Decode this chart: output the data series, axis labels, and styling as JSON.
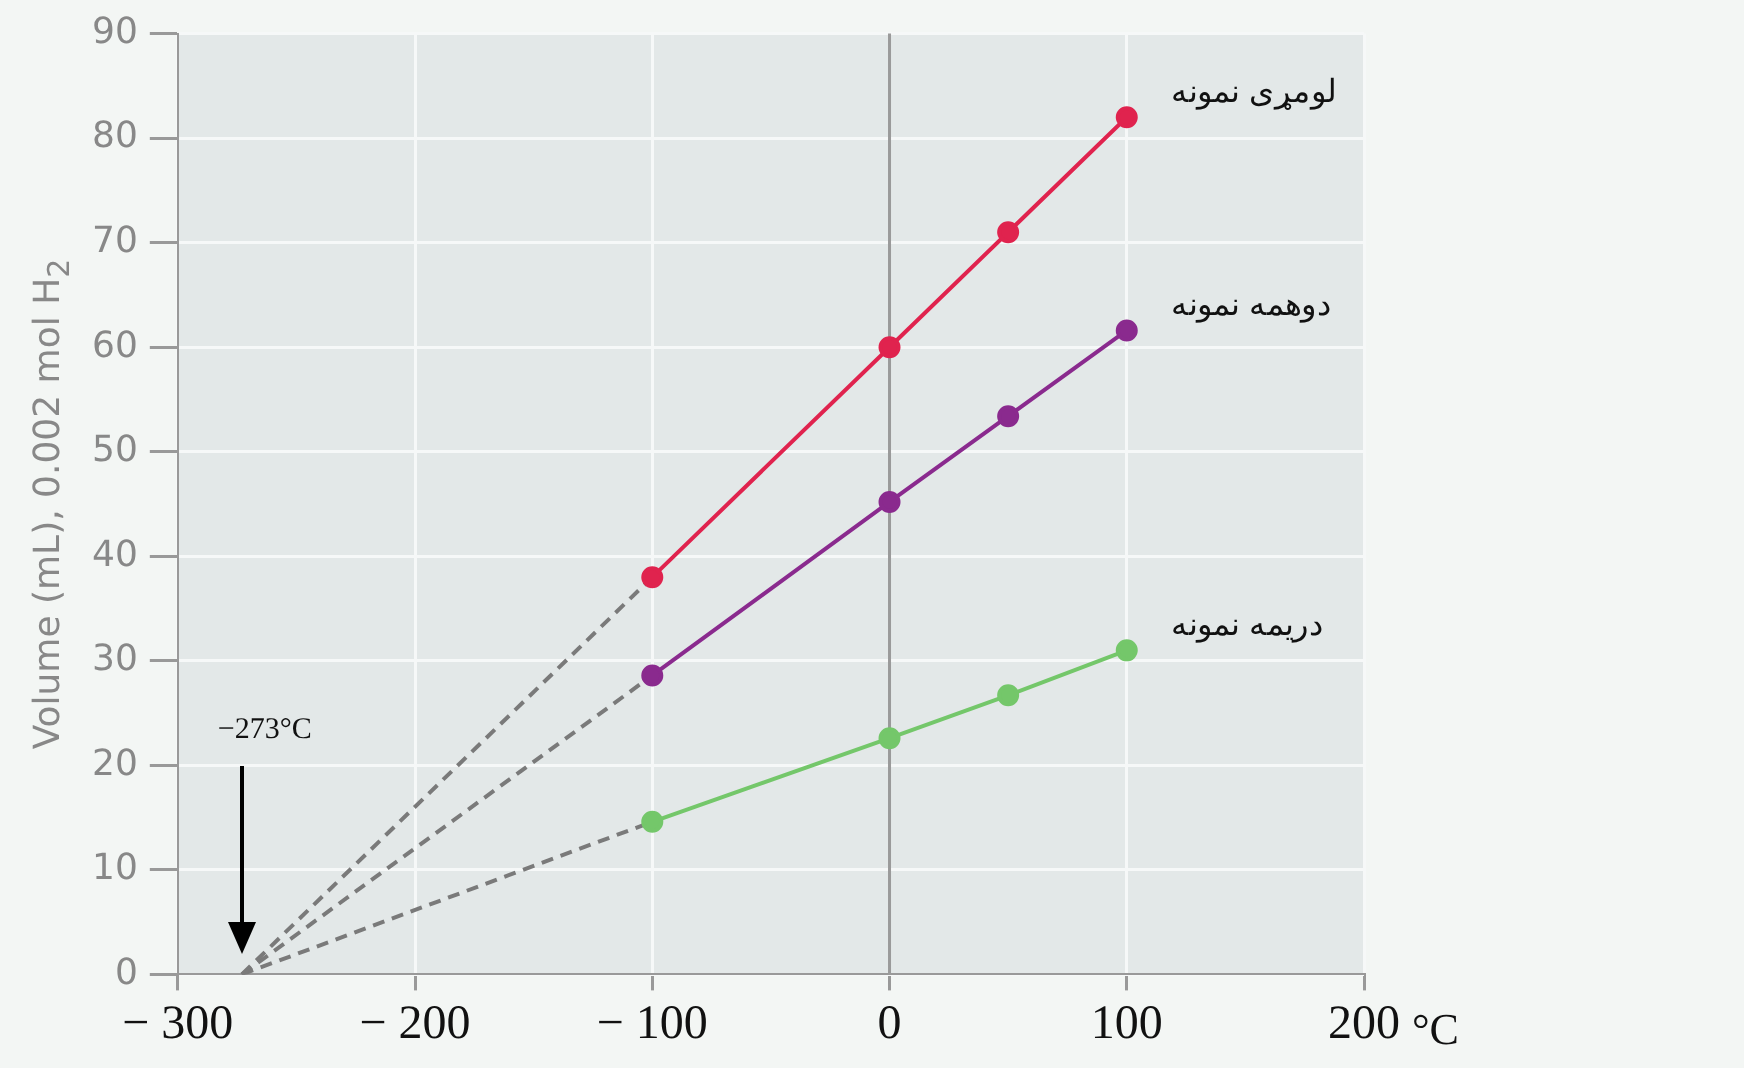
{
  "chart_data": {
    "type": "line",
    "ylabel": "Volume (mL), 0.002 mol H$_{2}$",
    "xlabel": "°C",
    "xlim": [
      -300,
      200
    ],
    "xticks": [
      -300,
      -200,
      -100,
      0,
      100,
      200
    ],
    "ylim": [
      0,
      90
    ],
    "yticks": [
      0,
      10,
      20,
      30,
      40,
      50,
      60,
      70,
      80,
      90
    ],
    "grid": true,
    "marker": "circle",
    "series": [
      {
        "name": "لومړی نمونه",
        "color": "#e0234e",
        "x": [
          -100,
          0,
          50,
          100
        ],
        "values": [
          38,
          60,
          71,
          82
        ]
      },
      {
        "name": "دوهمه نمونه",
        "color": "#8a2a8e",
        "x": [
          -100,
          0,
          50,
          100
        ],
        "values": [
          28.6,
          45.2,
          53.4,
          61.6
        ]
      },
      {
        "name": "دریمه نمونه",
        "color": "#74c76a",
        "x": [
          -100,
          0,
          50,
          100
        ],
        "values": [
          14.6,
          22.6,
          26.7,
          31
        ]
      },
      {
        "color": "#7a7a7a",
        "line_style": "dashed",
        "marker": "none",
        "x": [
          -273,
          -100
        ],
        "values": [
          0,
          38
        ]
      },
      {
        "color": "#7a7a7a",
        "line_style": "dashed",
        "marker": "none",
        "x": [
          -273,
          -100
        ],
        "values": [
          0,
          28.6
        ]
      },
      {
        "color": "#7a7a7a",
        "line_style": "dashed",
        "marker": "none",
        "x": [
          -273,
          -100
        ],
        "values": [
          0,
          14.6
        ]
      }
    ],
    "ref_lines": [
      {
        "axis": "x",
        "value": 0,
        "color": "#9a9a9a"
      }
    ],
    "annotations": [
      "−273°C"
    ]
  }
}
